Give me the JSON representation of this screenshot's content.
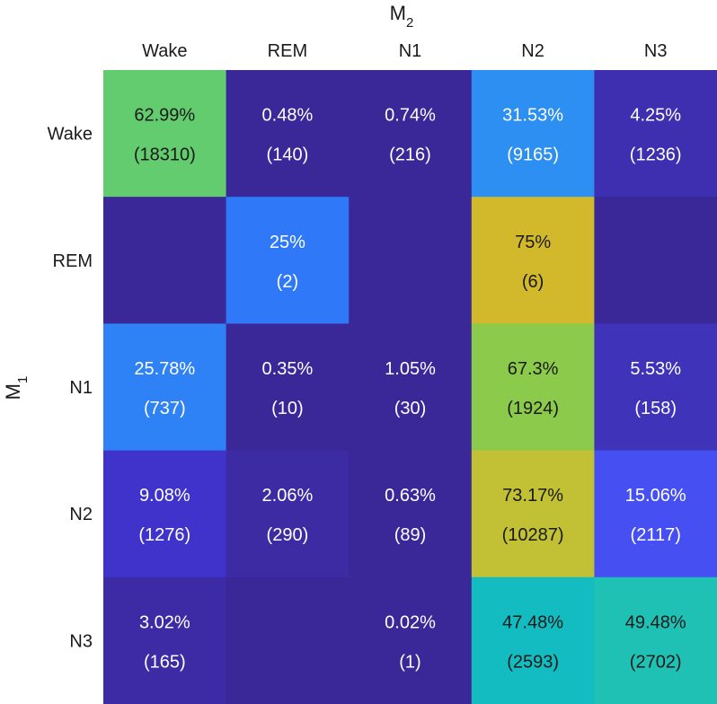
{
  "chart_data": {
    "type": "heatmap",
    "title": "",
    "xlabel": "M",
    "xlabel_subscript": "2",
    "ylabel": "M",
    "ylabel_subscript": "1",
    "x_categories": [
      "Wake",
      "REM",
      "N1",
      "N2",
      "N3"
    ],
    "y_categories": [
      "Wake",
      "REM",
      "N1",
      "N2",
      "N3"
    ],
    "percent_labels": [
      [
        "62.99%",
        "0.48%",
        "0.74%",
        "31.53%",
        "4.25%"
      ],
      [
        "",
        "25%",
        "",
        "75%",
        ""
      ],
      [
        "25.78%",
        "0.35%",
        "1.05%",
        "67.3%",
        "5.53%"
      ],
      [
        "9.08%",
        "2.06%",
        "0.63%",
        "73.17%",
        "15.06%"
      ],
      [
        "3.02%",
        "",
        "0.02%",
        "47.48%",
        "49.48%"
      ]
    ],
    "count_labels": [
      [
        "(18310)",
        "(140)",
        "(216)",
        "(9165)",
        "(1236)"
      ],
      [
        "",
        "(2)",
        "",
        "(6)",
        ""
      ],
      [
        "(737)",
        "(10)",
        "(30)",
        "(1924)",
        "(158)"
      ],
      [
        "(1276)",
        "(290)",
        "(89)",
        "(10287)",
        "(2117)"
      ],
      [
        "(165)",
        "",
        "(1)",
        "(2593)",
        "(2702)"
      ]
    ],
    "cell_colors": [
      [
        "#63cc6f",
        "#3a2899",
        "#3a2899",
        "#2c8ff1",
        "#3d2fb0"
      ],
      [
        "#3a2899",
        "#2f79f9",
        "#3a2899",
        "#d2b92b",
        "#3a2899"
      ],
      [
        "#2f82f6",
        "#3a2899",
        "#3a2899",
        "#8cca4c",
        "#3e33b9"
      ],
      [
        "#4033cc",
        "#3c2ba3",
        "#3a2899",
        "#c2c034",
        "#4650f2"
      ],
      [
        "#3c2ba5",
        "#3a2899",
        "#3a2899",
        "#12bcc0",
        "#1fc1b4"
      ]
    ],
    "text_colors": [
      [
        "#1a1a1a",
        "#ffffff",
        "#ffffff",
        "#ffffff",
        "#ffffff"
      ],
      [
        "#ffffff",
        "#ffffff",
        "#ffffff",
        "#1a1a1a",
        "#ffffff"
      ],
      [
        "#ffffff",
        "#ffffff",
        "#ffffff",
        "#1a1a1a",
        "#ffffff"
      ],
      [
        "#ffffff",
        "#ffffff",
        "#ffffff",
        "#1a1a1a",
        "#ffffff"
      ],
      [
        "#ffffff",
        "#ffffff",
        "#ffffff",
        "#1a1a1a",
        "#1a1a1a"
      ]
    ]
  }
}
